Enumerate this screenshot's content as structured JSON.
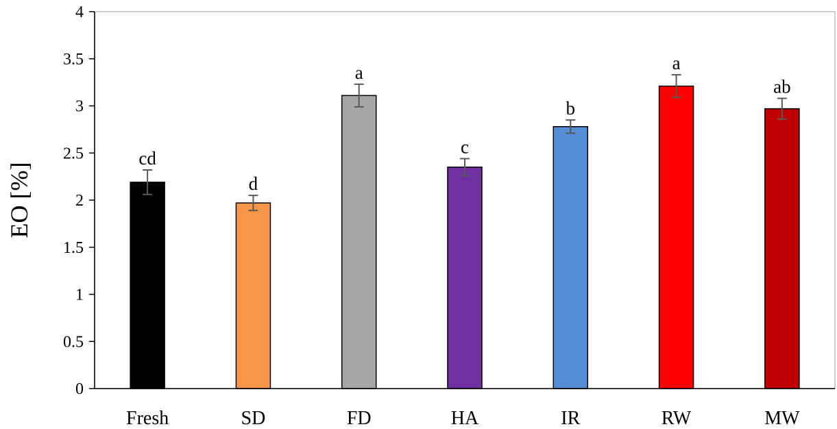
{
  "chart_data": {
    "type": "bar",
    "title": "",
    "xlabel": "",
    "ylabel": "EO [%]",
    "ylim": [
      0,
      4
    ],
    "yticks": [
      "0",
      "0.5",
      "1",
      "1.5",
      "2",
      "2.5",
      "3",
      "3.5",
      "4"
    ],
    "ytick_values": [
      0,
      0.5,
      1,
      1.5,
      2,
      2.5,
      3,
      3.5,
      4
    ],
    "grid": false,
    "categories": [
      "Fresh",
      "SD",
      "FD",
      "HA",
      "IR",
      "RW",
      "MW"
    ],
    "values": [
      2.19,
      1.97,
      3.11,
      2.35,
      2.78,
      3.21,
      2.97
    ],
    "errors": [
      0.13,
      0.08,
      0.12,
      0.09,
      0.07,
      0.12,
      0.11
    ],
    "significance_letters": [
      "cd",
      "d",
      "a",
      "c",
      "b",
      "a",
      "ab"
    ],
    "colors": [
      "#000000",
      "#f79646",
      "#a6a6a6",
      "#7030a0",
      "#558ed5",
      "#ff0000",
      "#c00000"
    ]
  }
}
